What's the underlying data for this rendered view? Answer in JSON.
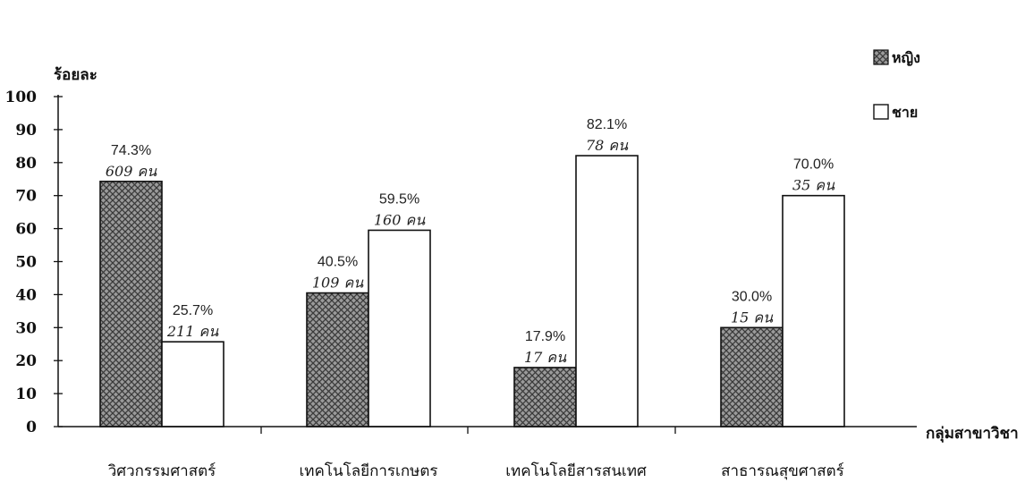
{
  "chart_data": {
    "type": "bar",
    "ylabel": "ร้อยละ",
    "xlabel": "กลุ่มสาขาวิชา",
    "ylim": [
      0,
      100
    ],
    "yticks": [
      0,
      10,
      20,
      30,
      40,
      50,
      60,
      70,
      80,
      90,
      100
    ],
    "categories": [
      "วิศวกรรมศาสตร์",
      "เทคโนโลยีการเกษตร",
      "เทคโนโลยีสารสนเทศ",
      "สาธารณสุขศาสตร์"
    ],
    "legend_position": "top-right",
    "series": [
      {
        "name": "หญิง",
        "color": "#8a8a8a",
        "pattern": "crosshatch",
        "values": [
          74.3,
          40.5,
          17.9,
          30.0
        ],
        "value_labels": [
          "74.3%",
          "40.5%",
          "17.9%",
          "30.0%"
        ],
        "count_labels": [
          "609 คน",
          "109 คน",
          "17 คน",
          "15 คน"
        ]
      },
      {
        "name": "ชาย",
        "color": "#ffffff",
        "pattern": "none",
        "values": [
          25.7,
          59.5,
          82.1,
          70.0
        ],
        "value_labels": [
          "25.7%",
          "59.5%",
          "82.1%",
          "70.0%"
        ],
        "count_labels": [
          "211 คน",
          "160 คน",
          "78 คน",
          "35 คน"
        ]
      }
    ]
  }
}
